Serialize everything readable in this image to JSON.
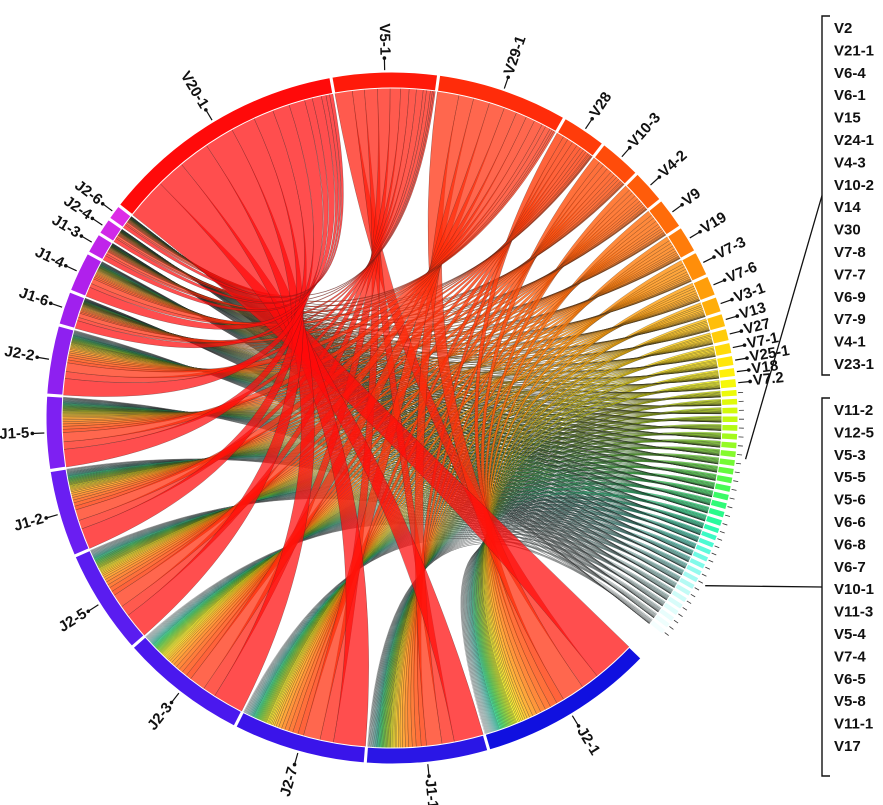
{
  "chart_data": {
    "type": "chord",
    "title": "",
    "segments": [
      {
        "name": "J2-1",
        "value": 160,
        "color": "#1010e0",
        "side": "J"
      },
      {
        "name": "J1-1",
        "value": 110,
        "color": "#2a16e6",
        "side": "J"
      },
      {
        "name": "J2-7",
        "value": 120,
        "color": "#3a14ea",
        "side": "J"
      },
      {
        "name": "J2-3",
        "value": 115,
        "color": "#4a18ee",
        "side": "J"
      },
      {
        "name": "J2-5",
        "value": 95,
        "color": "#5a1cf0",
        "side": "J"
      },
      {
        "name": "J1-2",
        "value": 78,
        "color": "#6a1ef2",
        "side": "J"
      },
      {
        "name": "J1-5",
        "value": 66,
        "color": "#7e20f2",
        "side": "J"
      },
      {
        "name": "J2-2",
        "value": 62,
        "color": "#8e20f0",
        "side": "J"
      },
      {
        "name": "J1-6",
        "value": 30,
        "color": "#a020ee",
        "side": "J"
      },
      {
        "name": "J1-4",
        "value": 36,
        "color": "#b020ec",
        "side": "J"
      },
      {
        "name": "J1-3",
        "value": 18,
        "color": "#c024ea",
        "side": "J"
      },
      {
        "name": "J2-4",
        "value": 14,
        "color": "#d028e8",
        "side": "J"
      },
      {
        "name": "J2-6",
        "value": 13,
        "color": "#dd2ce6",
        "side": "J"
      },
      {
        "name": "V20-1",
        "value": 225,
        "color": "#ff0a0a",
        "side": "V"
      },
      {
        "name": "V5-1",
        "value": 95,
        "color": "#ff1a0a",
        "side": "V"
      },
      {
        "name": "V29-1",
        "value": 118,
        "color": "#ff2c0a",
        "side": "V"
      },
      {
        "name": "V28",
        "value": 40,
        "color": "#ff3c0a",
        "side": "V"
      },
      {
        "name": "V10-3",
        "value": 38,
        "color": "#ff4c0a",
        "side": "V"
      },
      {
        "name": "V4-2",
        "value": 30,
        "color": "#ff5c0a",
        "side": "V"
      },
      {
        "name": "V9",
        "value": 28,
        "color": "#ff6c0a",
        "side": "V"
      },
      {
        "name": "V19",
        "value": 24,
        "color": "#ff7c0a",
        "side": "V"
      },
      {
        "name": "V7-3",
        "value": 22,
        "color": "#ff8e0a",
        "side": "V"
      },
      {
        "name": "V7-6",
        "value": 18,
        "color": "#ff9e0a",
        "side": "V"
      },
      {
        "name": "V3-1",
        "value": 14,
        "color": "#ffae0a",
        "side": "V"
      },
      {
        "name": "V13",
        "value": 12,
        "color": "#ffbe0a",
        "side": "V"
      },
      {
        "name": "V27",
        "value": 11,
        "color": "#ffcc0a",
        "side": "V"
      },
      {
        "name": "V7-1",
        "value": 10,
        "color": "#ffda0a",
        "side": "V"
      },
      {
        "name": "V25-1",
        "value": 9,
        "color": "#ffe60a",
        "side": "V"
      },
      {
        "name": "V18",
        "value": 8,
        "color": "#fff00a",
        "side": "V"
      },
      {
        "name": "V7.2",
        "value": 8,
        "color": "#f6f80a",
        "side": "V"
      },
      {
        "name": "V2",
        "value": 6,
        "color": "#ecfa0a",
        "side": "V"
      },
      {
        "name": "V21-1",
        "value": 6,
        "color": "#e0fa0a",
        "side": "V"
      },
      {
        "name": "V6-4",
        "value": 6,
        "color": "#d2fa0a",
        "side": "V"
      },
      {
        "name": "V6-1",
        "value": 6,
        "color": "#c4fa10",
        "side": "V"
      },
      {
        "name": "V15",
        "value": 6,
        "color": "#b4fa16",
        "side": "V"
      },
      {
        "name": "V24-1",
        "value": 6,
        "color": "#a4fa1c",
        "side": "V"
      },
      {
        "name": "V4-3",
        "value": 6,
        "color": "#94fa24",
        "side": "V"
      },
      {
        "name": "V10-2",
        "value": 6,
        "color": "#84fa2c",
        "side": "V"
      },
      {
        "name": "V14",
        "value": 6,
        "color": "#74fa34",
        "side": "V"
      },
      {
        "name": "V30",
        "value": 6,
        "color": "#64fa3c",
        "side": "V"
      },
      {
        "name": "V7-8",
        "value": 6,
        "color": "#54fa48",
        "side": "V"
      },
      {
        "name": "V7-7",
        "value": 6,
        "color": "#46fa56",
        "side": "V"
      },
      {
        "name": "V6-9",
        "value": 6,
        "color": "#3afa66",
        "side": "V"
      },
      {
        "name": "V7-9",
        "value": 6,
        "color": "#30fa78",
        "side": "V"
      },
      {
        "name": "V4-1",
        "value": 6,
        "color": "#2afa8a",
        "side": "V"
      },
      {
        "name": "V23-1",
        "value": 6,
        "color": "#2afa9e",
        "side": "V"
      },
      {
        "name": "V11-2",
        "value": 5,
        "color": "#30fab2",
        "side": "V"
      },
      {
        "name": "V12-5",
        "value": 5,
        "color": "#3cfac4",
        "side": "V"
      },
      {
        "name": "V5-3",
        "value": 5,
        "color": "#4cfad2",
        "side": "V"
      },
      {
        "name": "V5-5",
        "value": 5,
        "color": "#5efadc",
        "side": "V"
      },
      {
        "name": "V5-6",
        "value": 5,
        "color": "#70fae4",
        "side": "V"
      },
      {
        "name": "V6-6",
        "value": 5,
        "color": "#82faea",
        "side": "V"
      },
      {
        "name": "V6-8",
        "value": 5,
        "color": "#94faee",
        "side": "V"
      },
      {
        "name": "V6-7",
        "value": 5,
        "color": "#a4faf2",
        "side": "V"
      },
      {
        "name": "V10-1",
        "value": 5,
        "color": "#b4faf4",
        "side": "V"
      },
      {
        "name": "V11-3",
        "value": 5,
        "color": "#c2fbf6",
        "side": "V"
      },
      {
        "name": "V5-4",
        "value": 5,
        "color": "#cefcf8",
        "side": "V"
      },
      {
        "name": "V7-4",
        "value": 5,
        "color": "#d8fcfa",
        "side": "V"
      },
      {
        "name": "V6-5",
        "value": 5,
        "color": "#e0fdfb",
        "side": "V"
      },
      {
        "name": "V5-8",
        "value": 5,
        "color": "#e8fdfc",
        "side": "V"
      },
      {
        "name": "V11-1",
        "value": 5,
        "color": "#eefefd",
        "side": "V"
      },
      {
        "name": "V17",
        "value": 5,
        "color": "#f4fefe",
        "side": "V"
      }
    ],
    "legend_groups": [
      {
        "labels": [
          "V2",
          "V21-1",
          "V6-4",
          "V6-1",
          "V15",
          "V24-1",
          "V4-3",
          "V10-2",
          "V14",
          "V30",
          "V7-8",
          "V7-7",
          "V6-9",
          "V7-9",
          "V4-1",
          "V23-1"
        ]
      },
      {
        "labels": [
          "V11-2",
          "V12-5",
          "V5-3",
          "V5-5",
          "V5-6",
          "V6-6",
          "V6-8",
          "V6-7",
          "V10-1",
          "V11-3",
          "V5-4",
          "V7-4",
          "V6-5",
          "V5-8",
          "V11-1",
          "V17"
        ]
      }
    ]
  }
}
